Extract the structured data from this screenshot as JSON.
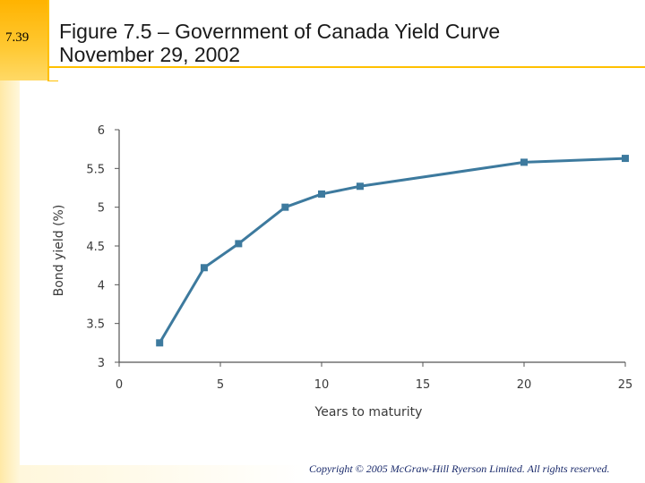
{
  "slide": {
    "number": "7.39",
    "title_line1": "Figure 7.5 – Government of Canada Yield Curve",
    "title_line2": "November 29, 2002",
    "copyright": "Copyright © 2005 McGraw-Hill Ryerson Limited. All rights reserved."
  },
  "colors": {
    "accent": "#ffc000",
    "series": "#3d7a9e",
    "axis": "#555555"
  },
  "chart_data": {
    "type": "line",
    "title": "Figure 7.5 – Government of Canada Yield Curve November 29, 2002",
    "xlabel": "Years to maturity",
    "ylabel": "Bond yield (%)",
    "xlim": [
      0,
      25
    ],
    "ylim": [
      3,
      6
    ],
    "xticks": [
      0,
      5,
      10,
      15,
      20,
      25
    ],
    "yticks": [
      3,
      3.5,
      4,
      4.5,
      5,
      5.5,
      6
    ],
    "xtick_labels": [
      "0",
      "5",
      "10",
      "15",
      "20",
      "25"
    ],
    "ytick_labels": [
      "3",
      "3.5",
      "4",
      "4.5",
      "5",
      "5.5",
      "6"
    ],
    "series": [
      {
        "name": "Yield curve",
        "x": [
          2,
          4.2,
          5.9,
          8.2,
          10,
          11.9,
          20,
          25
        ],
        "y": [
          3.25,
          4.22,
          4.53,
          5.0,
          5.17,
          5.27,
          5.58,
          5.63
        ]
      }
    ],
    "grid": false,
    "legend": "none"
  }
}
